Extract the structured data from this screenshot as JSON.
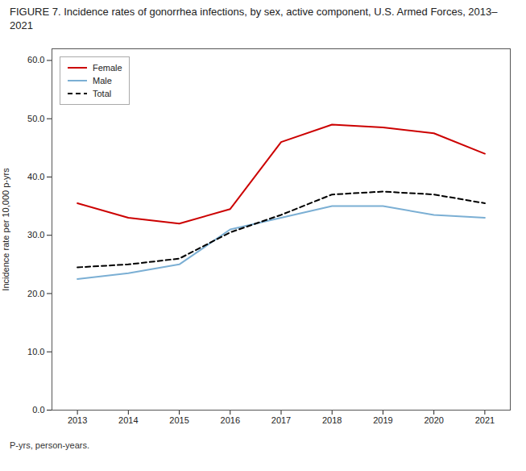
{
  "chart_data": {
    "type": "line",
    "title": "FIGURE 7. Incidence rates of gonorrhea infections, by sex, active component, U.S. Armed Forces, 2013–2021",
    "caption": "P-yrs, person-years.",
    "ylabel": "Incidence rate per 10,000 p-yrs",
    "x": [
      2013,
      2014,
      2015,
      2016,
      2017,
      2018,
      2019,
      2020,
      2021
    ],
    "series": [
      {
        "name": "Female",
        "color": "#cc0000",
        "line_style": "solid",
        "values": [
          35.5,
          33.0,
          32.0,
          34.5,
          46.0,
          49.0,
          48.5,
          47.5,
          44.0
        ]
      },
      {
        "name": "Male",
        "color": "#7bafd4",
        "line_style": "solid",
        "values": [
          22.5,
          23.5,
          25.0,
          31.0,
          33.0,
          35.0,
          35.0,
          33.5,
          33.0
        ]
      },
      {
        "name": "Total",
        "color": "#000000",
        "line_style": "dashed",
        "values": [
          24.5,
          25.0,
          26.0,
          30.5,
          33.5,
          37.0,
          37.5,
          37.0,
          35.5
        ]
      }
    ],
    "xlim": [
      2012.5,
      2021.5
    ],
    "xticks": [
      2013,
      2014,
      2015,
      2016,
      2017,
      2018,
      2019,
      2020,
      2021
    ],
    "ylim": [
      0,
      62
    ],
    "yticks": [
      {
        "value": 0,
        "label": "0.0"
      },
      {
        "value": 10,
        "label": "10.0"
      },
      {
        "value": 20,
        "label": "20.0"
      },
      {
        "value": 30,
        "label": "30.0"
      },
      {
        "value": 40,
        "label": "40.0"
      },
      {
        "value": 50,
        "label": "50.0"
      },
      {
        "value": 60,
        "label": "60.0"
      }
    ],
    "grid": false,
    "legend": "upper left"
  }
}
